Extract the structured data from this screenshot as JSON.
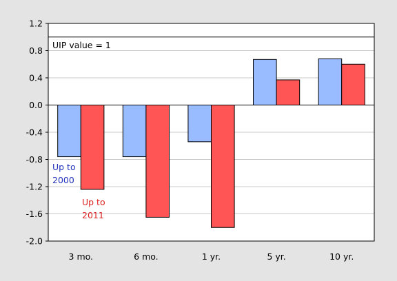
{
  "colors": {
    "background": "#e4e4e4",
    "plot_background": "#ffffff",
    "series_2000": "#99bbff",
    "series_2011": "#ff5555",
    "label_2000": "#2233bb",
    "label_2011": "#dd2222",
    "grid": "#c8c8c8",
    "axis": "#000000"
  },
  "chart_data": {
    "type": "bar",
    "title": "",
    "xlabel": "",
    "ylabel": "",
    "categories": [
      "3 mo.",
      "6 mo.",
      "1 yr.",
      "5 yr.",
      "10 yr."
    ],
    "series": [
      {
        "name": "Up to 2000",
        "values": [
          -0.76,
          -0.76,
          -0.54,
          0.67,
          0.68
        ]
      },
      {
        "name": "Up to 2011",
        "values": [
          -1.24,
          -1.65,
          -1.8,
          0.37,
          0.6
        ]
      }
    ],
    "ylim": [
      -2.0,
      1.2
    ],
    "yticks": [
      "1.2",
      "0.8",
      "0.4",
      "0.0",
      "-0.4",
      "-0.8",
      "-1.2",
      "-1.6",
      "-2.0"
    ],
    "grid": true,
    "reference_line": {
      "value": 1.0,
      "label": "UIP value = 1"
    },
    "annotations": {
      "series_2000_lines": [
        "Up to",
        "2000"
      ],
      "series_2011_lines": [
        "Up to",
        "2011"
      ]
    }
  }
}
